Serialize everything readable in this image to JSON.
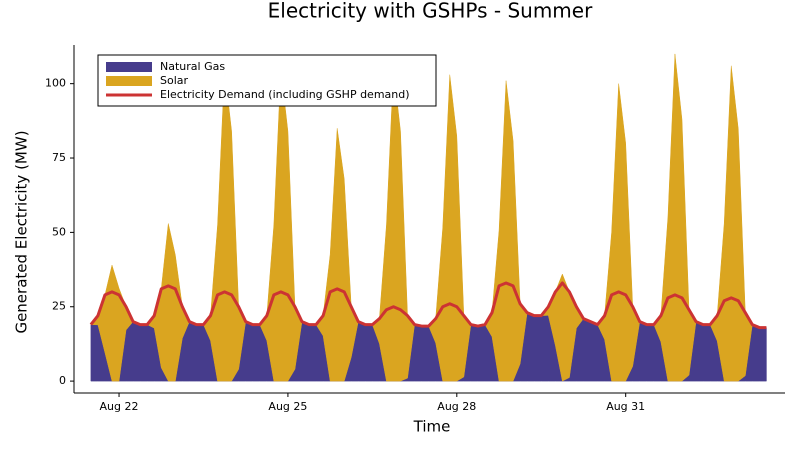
{
  "chart_data": {
    "type": "stacked-area-line",
    "title": "Electricity with GSHPs - Summer",
    "x_label": "Time",
    "y_label": "Generated Electricity (MW)",
    "xlim": [
      21.2,
      33.83
    ],
    "ylim": [
      -4,
      113
    ],
    "xticks": [
      {
        "value": 22,
        "label": "Aug 22"
      },
      {
        "value": 25,
        "label": "Aug 25"
      },
      {
        "value": 28,
        "label": "Aug 28"
      },
      {
        "value": 31,
        "label": "Aug 31"
      }
    ],
    "yticks": [
      0,
      25,
      50,
      75,
      100
    ],
    "legend": "top-left",
    "x": [
      21.5,
      21.625,
      21.75,
      21.875,
      22,
      22.125,
      22.25,
      22.375,
      22.5,
      22.625,
      22.75,
      22.875,
      23,
      23.125,
      23.25,
      23.375,
      23.5,
      23.625,
      23.75,
      23.875,
      24,
      24.125,
      24.25,
      24.375,
      24.5,
      24.625,
      24.75,
      24.875,
      25,
      25.125,
      25.25,
      25.375,
      25.5,
      25.625,
      25.75,
      25.875,
      26,
      26.125,
      26.25,
      26.375,
      26.5,
      26.625,
      26.75,
      26.875,
      27,
      27.125,
      27.25,
      27.375,
      27.5,
      27.625,
      27.75,
      27.875,
      28,
      28.125,
      28.25,
      28.375,
      28.5,
      28.625,
      28.75,
      28.875,
      29,
      29.125,
      29.25,
      29.375,
      29.5,
      29.625,
      29.75,
      29.875,
      30,
      30.125,
      30.25,
      30.375,
      30.5,
      30.625,
      30.75,
      30.875,
      31,
      31.125,
      31.25,
      31.375,
      31.5,
      31.625,
      31.75,
      31.875,
      32,
      32.125,
      32.25,
      32.375,
      32.5,
      32.625,
      32.75,
      32.875,
      33,
      33.125,
      33.25,
      33.375,
      33.5
    ],
    "series": [
      {
        "name": "Natural Gas",
        "kind": "area",
        "color": "#463c8c",
        "values": [
          19,
          18.9,
          9.5,
          0,
          0,
          17.2,
          20,
          19,
          19,
          17.8,
          4.5,
          0,
          0,
          14.4,
          20,
          19,
          19,
          13.6,
          0,
          0,
          0,
          4,
          20,
          19,
          19,
          13.6,
          0,
          0,
          0,
          4,
          20,
          19,
          19,
          15.2,
          0,
          0,
          0,
          8,
          20,
          19,
          19,
          12.6,
          0,
          0,
          0,
          1,
          19,
          18.5,
          18.5,
          12.8,
          0,
          0,
          0,
          1.4,
          19,
          18.5,
          19,
          14.9,
          0,
          0,
          0,
          5.8,
          23,
          22,
          22,
          22.1,
          12,
          0,
          1.2,
          17.8,
          21,
          20,
          19,
          14,
          0,
          0,
          0,
          5,
          20,
          19,
          19,
          13.2,
          0,
          0,
          0,
          2,
          20,
          19,
          19,
          13.5,
          0,
          0,
          0,
          1.8,
          19,
          18,
          18
        ]
      },
      {
        "name": "Solar",
        "kind": "area",
        "color": "#daa520",
        "values": [
          0,
          3.1,
          19.5,
          39,
          31.2,
          7.8,
          0,
          0,
          0,
          4.2,
          26.5,
          53,
          42.4,
          10.6,
          0,
          0,
          0,
          8.4,
          52.5,
          105,
          84,
          21,
          0,
          0,
          0,
          8.4,
          52.5,
          105,
          84,
          21,
          0,
          0,
          0,
          6.8,
          42.5,
          85,
          68,
          17,
          0,
          0,
          0,
          8.4,
          52.5,
          105,
          84,
          21,
          0,
          0,
          0,
          8.2,
          51.5,
          103,
          82.4,
          20.6,
          0,
          0,
          0,
          8.1,
          50.5,
          101,
          80.8,
          20.2,
          0,
          0,
          0,
          2.9,
          18,
          36,
          28.8,
          7.2,
          0,
          0,
          0,
          8,
          50,
          100,
          80,
          20,
          0,
          0,
          0,
          8.8,
          55,
          110,
          88,
          22,
          0,
          0,
          0,
          8.5,
          53,
          106,
          84.8,
          21.2,
          0,
          0,
          0
        ]
      },
      {
        "name": "Electricity Demand (including GSHP demand)",
        "kind": "line",
        "color": "#cc3333",
        "values": [
          19,
          22,
          29,
          30,
          29,
          25,
          20,
          19,
          19,
          22,
          31,
          32,
          31,
          25,
          20,
          19,
          19,
          22,
          29,
          30,
          29,
          25,
          20,
          19,
          19,
          22,
          29,
          30,
          29,
          25,
          20,
          19,
          19,
          22,
          30,
          31,
          30,
          25,
          20,
          19,
          19,
          21,
          24,
          25,
          24,
          22,
          19,
          18.5,
          18.5,
          21,
          25,
          26,
          25,
          22,
          19,
          18.5,
          19,
          23,
          32,
          33,
          32,
          26,
          23,
          22,
          22,
          25,
          30,
          33,
          30,
          25,
          21,
          20,
          19,
          22,
          29,
          30,
          29,
          25,
          20,
          19,
          19,
          22,
          28,
          29,
          28,
          24,
          20,
          19,
          19,
          22,
          27,
          28,
          27,
          23,
          19,
          18,
          18
        ]
      }
    ]
  }
}
